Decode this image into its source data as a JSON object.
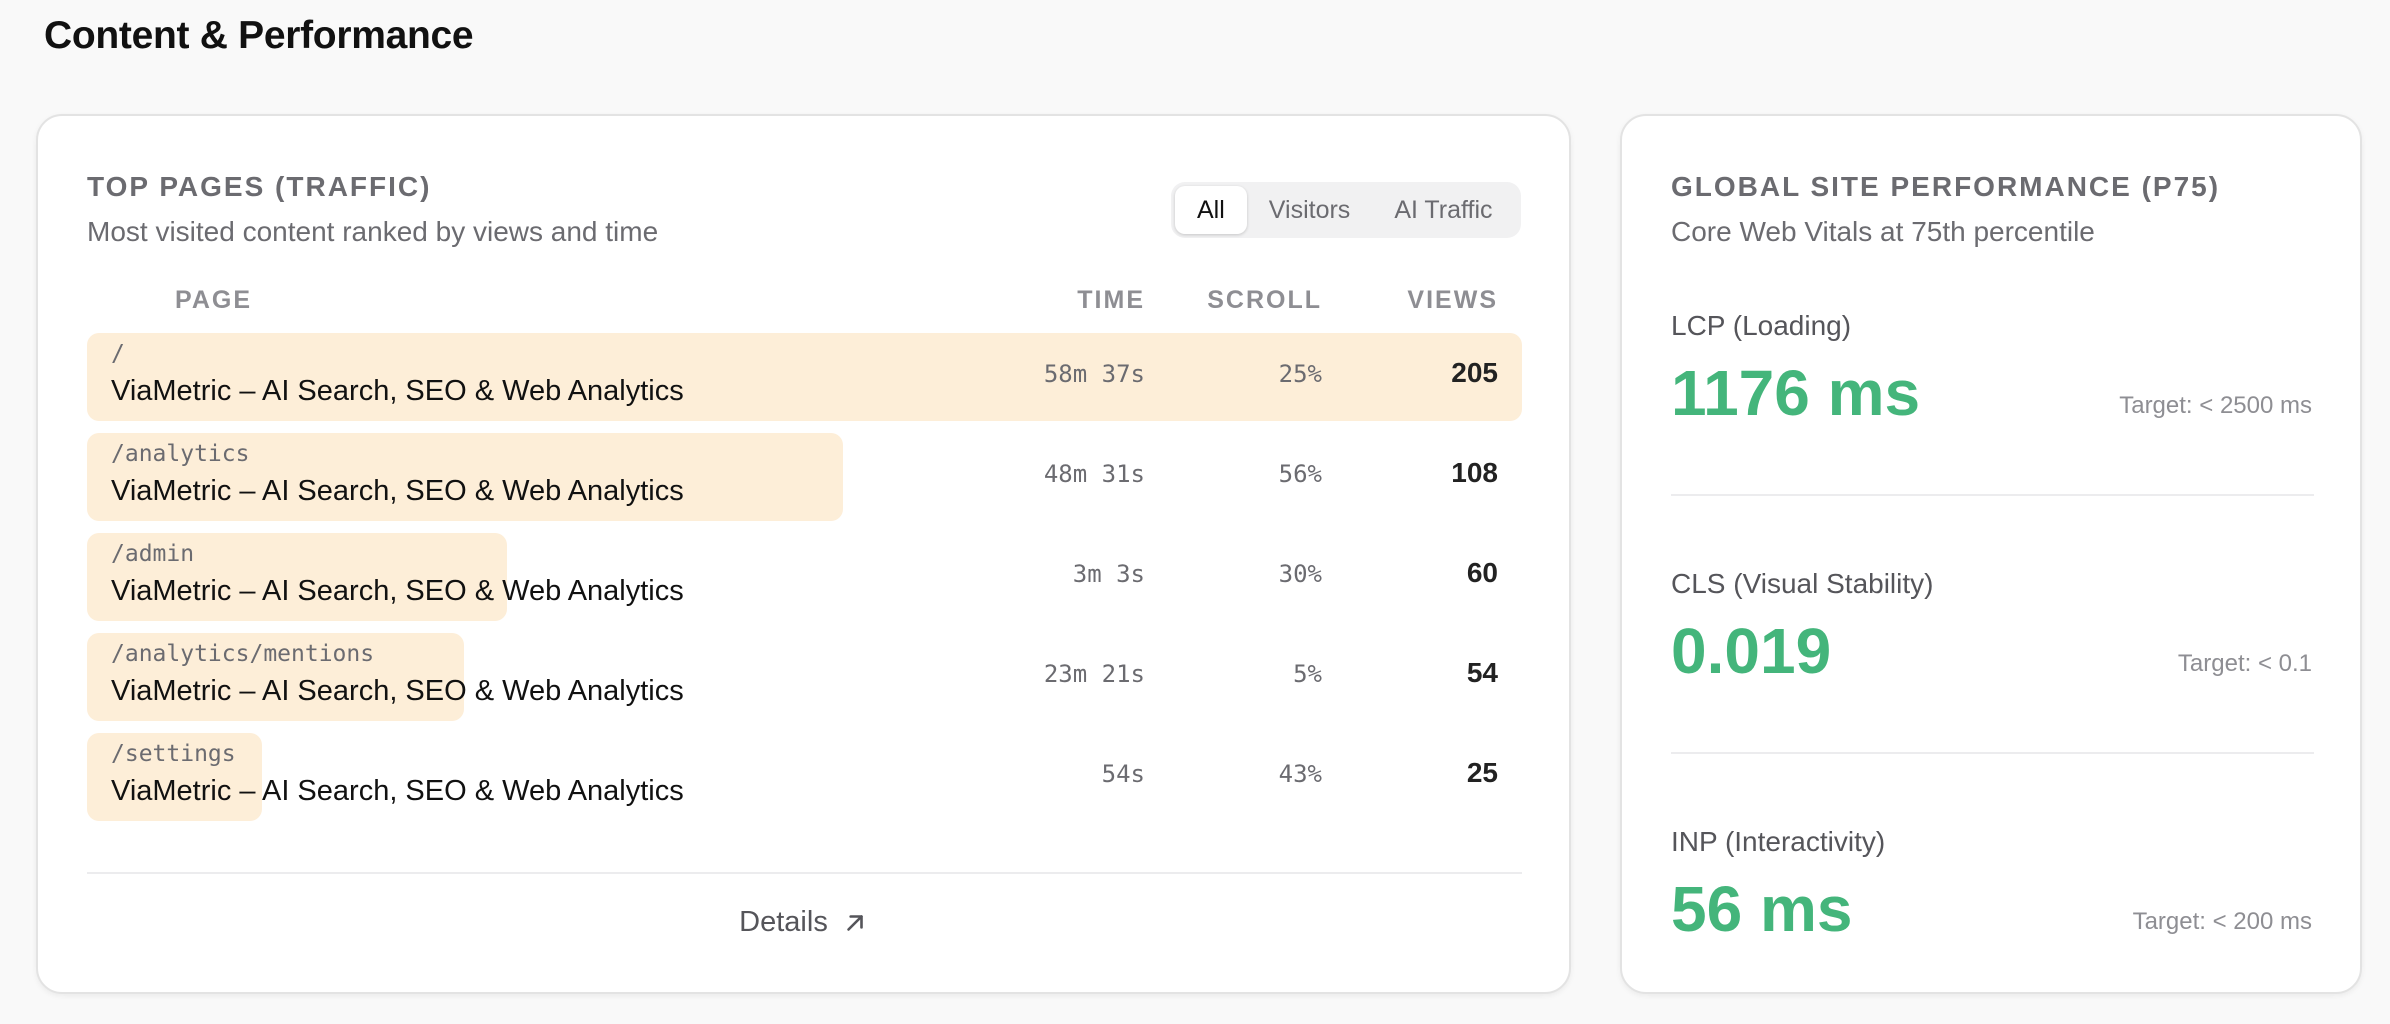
{
  "section": {
    "title": "Content & Performance"
  },
  "top_pages": {
    "title": "TOP PAGES (TRAFFIC)",
    "subtitle": "Most visited content ranked by views and time",
    "filters": [
      "All",
      "Visitors",
      "AI Traffic"
    ],
    "active_filter": "All",
    "columns": {
      "page": "PAGE",
      "time": "TIME",
      "scroll": "SCROLL",
      "views": "VIEWS"
    },
    "rows": [
      {
        "path": "/",
        "title": "ViaMetric – AI Search, SEO & Web Analytics",
        "time": "58m 37s",
        "scroll": "25%",
        "views": "205",
        "share": 1.0
      },
      {
        "path": "/analytics",
        "title": "ViaMetric – AI Search, SEO & Web Analytics",
        "time": "48m 31s",
        "scroll": "56%",
        "views": "108",
        "share": 0.527
      },
      {
        "path": "/admin",
        "title": "ViaMetric – AI Search, SEO & Web Analytics",
        "time": "3m 3s",
        "scroll": "30%",
        "views": "60",
        "share": 0.293
      },
      {
        "path": "/analytics/mentions",
        "title": "ViaMetric – AI Search, SEO & Web Analytics",
        "time": "23m 21s",
        "scroll": "5%",
        "views": "54",
        "share": 0.263
      },
      {
        "path": "/settings",
        "title": "ViaMetric – AI Search, SEO & Web Analytics",
        "time": "54s",
        "scroll": "43%",
        "views": "25",
        "share": 0.122
      }
    ],
    "details_label": "Details"
  },
  "performance": {
    "title": "GLOBAL SITE PERFORMANCE (P75)",
    "subtitle": "Core Web Vitals at 75th percentile",
    "good_color": "#44b57b",
    "metrics": [
      {
        "label": "LCP (Loading)",
        "value": "1176 ms",
        "target": "Target: < 2500 ms"
      },
      {
        "label": "CLS (Visual Stability)",
        "value": "0.019",
        "target": "Target: < 0.1"
      },
      {
        "label": "INP (Interactivity)",
        "value": "56 ms",
        "target": "Target: < 200 ms"
      }
    ]
  }
}
